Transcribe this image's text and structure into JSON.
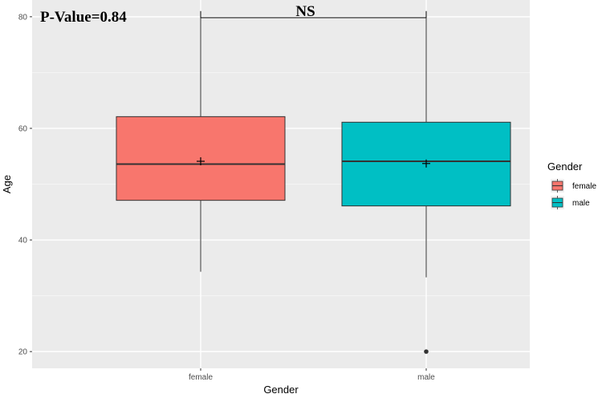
{
  "chart_data": {
    "type": "box",
    "xlabel": "Gender",
    "ylabel": "Age",
    "categories": [
      "female",
      "male"
    ],
    "ylim": [
      17,
      83
    ],
    "yticks": [
      20,
      40,
      60,
      80
    ],
    "grid": true,
    "legend": {
      "title": "Gender",
      "placement": "right",
      "entries": [
        {
          "label": "female",
          "color": "#F8766D"
        },
        {
          "label": "male",
          "color": "#00BFC4"
        }
      ]
    },
    "boxes": [
      {
        "category": "female",
        "min": 34.3,
        "q1": 47.1,
        "median": 53.6,
        "q3": 62.1,
        "max": 81,
        "mean": 54.1,
        "outliers": [],
        "color": "#F8766D"
      },
      {
        "category": "male",
        "min": 33.3,
        "q1": 46.1,
        "median": 54.1,
        "q3": 61.1,
        "max": 81,
        "mean": 53.7,
        "outliers": [
          20
        ],
        "color": "#00BFC4"
      }
    ],
    "annotations": {
      "pvalue": "P-Value=0.84",
      "significance": "NS"
    }
  }
}
